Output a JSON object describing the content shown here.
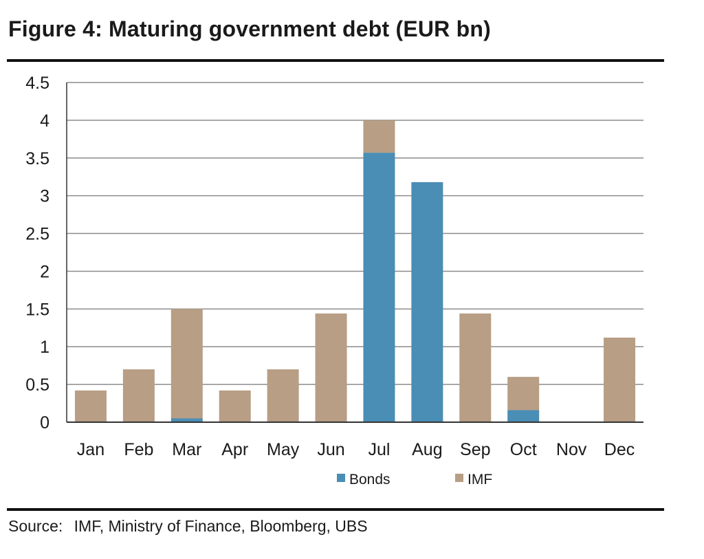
{
  "figure": {
    "title": "Figure 4: Maturing government debt (EUR bn)"
  },
  "source": {
    "label": "Source:",
    "text": "IMF, Ministry of Finance, Bloomberg, UBS"
  },
  "colors": {
    "bonds": "#4a8db5",
    "imf": "#b79e84",
    "grid": "#8c8c8c",
    "axis": "#333333"
  },
  "chart_data": {
    "type": "bar",
    "stacked": true,
    "title": "",
    "xlabel": "",
    "ylabel": "",
    "categories": [
      "Jan",
      "Feb",
      "Mar",
      "Apr",
      "May",
      "Jun",
      "Jul",
      "Aug",
      "Sep",
      "Oct",
      "Nov",
      "Dec"
    ],
    "series": [
      {
        "name": "Bonds",
        "values": [
          0,
          0,
          0.05,
          0,
          0,
          0,
          3.57,
          3.18,
          0,
          0.16,
          0,
          0
        ]
      },
      {
        "name": "IMF",
        "values": [
          0.42,
          0.7,
          1.45,
          0.42,
          0.7,
          1.44,
          0.43,
          0,
          1.44,
          0.44,
          0,
          1.12
        ]
      }
    ],
    "ylim": [
      0,
      4.5
    ],
    "yticks": [
      "0",
      "0.5",
      "1",
      "1.5",
      "2",
      "2.5",
      "3",
      "3.5",
      "4",
      "4.5"
    ],
    "grid": true,
    "legend_position": "bottom-center"
  }
}
